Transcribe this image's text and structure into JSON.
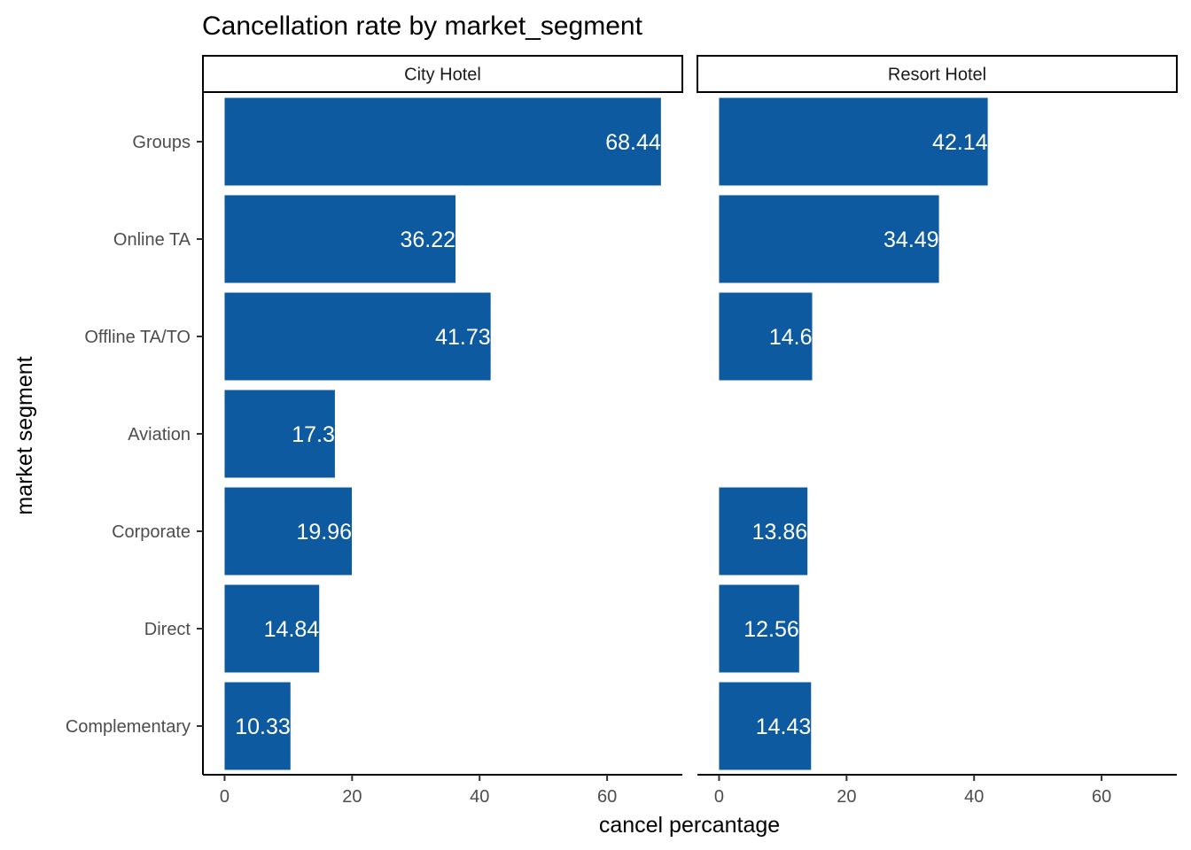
{
  "chart_data": {
    "type": "bar",
    "orientation": "horizontal",
    "title": "Cancellation rate by market_segment",
    "xlabel": "cancel percantage",
    "ylabel": "market segment",
    "xlim": [
      -3.4,
      71.8
    ],
    "xticks": [
      0,
      20,
      40,
      60
    ],
    "xtick_labels": [
      "0",
      "20",
      "40",
      "60"
    ],
    "grid": false,
    "legend": "none",
    "bar_color": "#0D5AA0",
    "categories": [
      "Groups",
      "Online TA",
      "Offline TA/TO",
      "Aviation",
      "Corporate",
      "Direct",
      "Complementary"
    ],
    "facets": [
      {
        "name": "City Hotel",
        "values": [
          68.44,
          36.22,
          41.73,
          17.3,
          19.96,
          14.84,
          10.33
        ],
        "labels": [
          "68.44",
          "36.22",
          "41.73",
          "17.3",
          "19.96",
          "14.84",
          "10.33"
        ]
      },
      {
        "name": "Resort Hotel",
        "values": [
          42.14,
          34.49,
          14.6,
          null,
          13.86,
          12.56,
          14.43
        ],
        "labels": [
          "42.14",
          "34.49",
          "14.6",
          "",
          "13.86",
          "12.56",
          "14.43"
        ]
      }
    ]
  }
}
